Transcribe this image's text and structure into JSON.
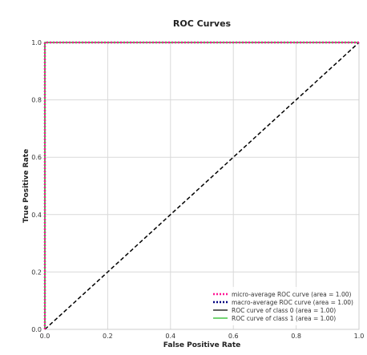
{
  "chart_data": {
    "type": "line",
    "title": "ROC Curves",
    "xlabel": "False Positive Rate",
    "ylabel": "True Positive Rate",
    "xlim": [
      0.0,
      1.0
    ],
    "ylim": [
      0.0,
      1.0
    ],
    "xticks": [
      "0.0",
      "0.2",
      "0.4",
      "0.6",
      "0.8",
      "1.0"
    ],
    "yticks": [
      "0.0",
      "0.2",
      "0.4",
      "0.6",
      "0.8",
      "1.0"
    ],
    "grid": true,
    "legend_position": "lower-right",
    "series": [
      {
        "name": "micro-average ROC curve (area = 1.00)",
        "color": "#ff1493",
        "style": "dotted",
        "x": [
          0.0,
          0.0,
          1.0
        ],
        "y": [
          0.0,
          1.0,
          1.0
        ]
      },
      {
        "name": "macro-average ROC curve (area = 1.00)",
        "color": "#000080",
        "style": "dotted",
        "x": [
          0.0,
          0.0,
          1.0
        ],
        "y": [
          0.0,
          1.0,
          1.0
        ]
      },
      {
        "name": "ROC curve of class 0 (area = 1.00)",
        "color": "#000000",
        "style": "solid",
        "x": [
          0.0,
          0.0,
          1.0
        ],
        "y": [
          0.0,
          1.0,
          1.0
        ]
      },
      {
        "name": "ROC curve of class 1 (area = 1.00)",
        "color": "#22bb22",
        "style": "solid",
        "x": [
          0.0,
          0.0,
          1.0
        ],
        "y": [
          0.0,
          1.0,
          1.0
        ]
      }
    ],
    "reference_line": {
      "color": "#000000",
      "style": "dashed",
      "x": [
        0.0,
        1.0
      ],
      "y": [
        0.0,
        1.0
      ]
    }
  }
}
